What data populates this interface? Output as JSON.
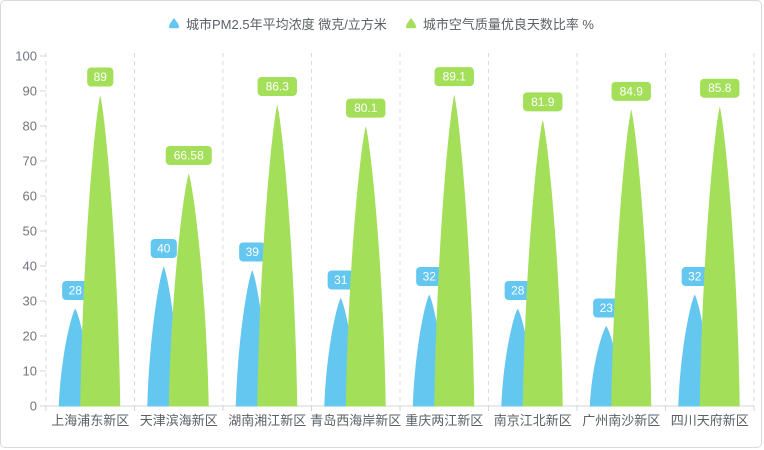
{
  "chart_data": {
    "type": "bar",
    "subtype": "pictorial-petal-bar",
    "title": "",
    "categories": [
      "上海浦东新区",
      "天津滨海新区",
      "湖南湘江新区",
      "青岛西海岸新区",
      "重庆两江新区",
      "南京江北新区",
      "广州南沙新区",
      "四川天府新区"
    ],
    "series": [
      {
        "name": "城市PM2.5年平均浓度 微克/立方米",
        "color": "#63C7F0",
        "values": [
          28,
          40,
          39,
          31,
          32,
          28,
          23,
          32
        ]
      },
      {
        "name": "城市空气质量优良天数比率 %",
        "color": "#A4DF5A",
        "values": [
          89,
          66.58,
          86.3,
          80.1,
          89.1,
          81.9,
          84.9,
          85.8
        ]
      }
    ],
    "value_labels_shown": true,
    "ylim": [
      0,
      100
    ],
    "y_ticks": [
      "0",
      "10",
      "20",
      "30",
      "40",
      "50",
      "60",
      "70",
      "80",
      "90",
      "100"
    ],
    "xlabel": "",
    "ylabel": "",
    "legend_position": "top-center",
    "grid": "vertical dashed separators between categories, no horizontal gridlines"
  },
  "colors": {
    "series_pm25": "#63C7F0",
    "series_air_quality": "#A4DF5A",
    "badge_text": "#ffffff",
    "axis_line": "#d2d6da",
    "dashed_separator": "#d6d9dc",
    "y_tick_label": "#70757d",
    "category_label": "#5b6066",
    "legend_text": "#5b6066",
    "frame_border": "#d9d9d9"
  }
}
